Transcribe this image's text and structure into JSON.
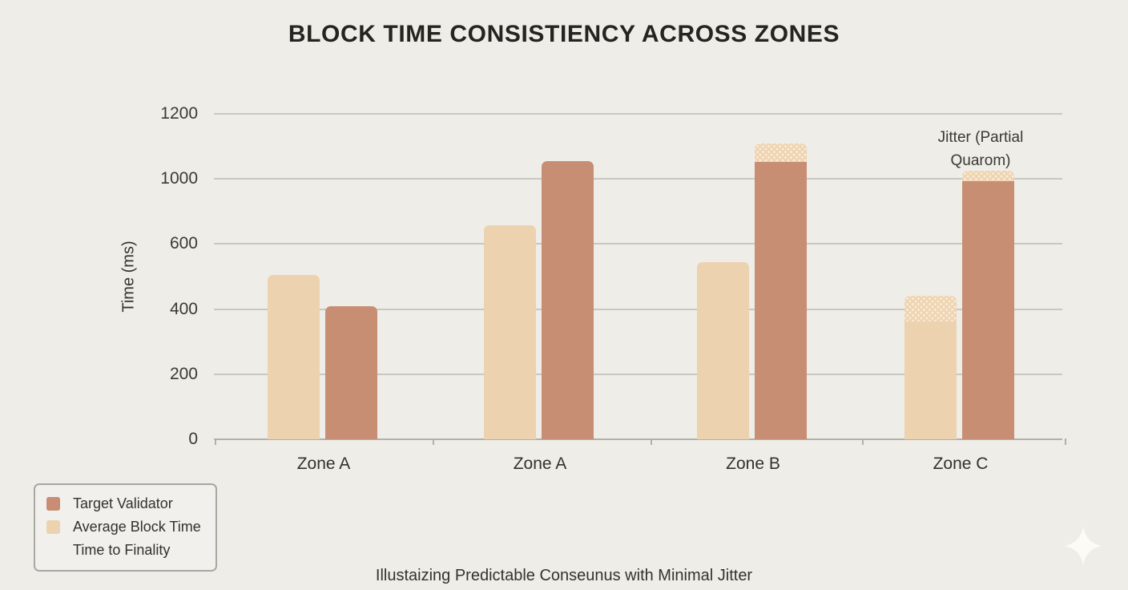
{
  "chart_data": {
    "type": "bar",
    "title": "BLOCK TIME CONSISTIENCY ACROSS ZONES",
    "ylabel": "Time (ms)",
    "xlabel": "",
    "caption": "Illustaizing Predictable Conseunus with Minimal Jitter",
    "annotation": [
      "Jitter (Partial",
      "Quarom)"
    ],
    "categories": [
      "Zone A",
      "Zone A",
      "Zone B",
      "Zone C"
    ],
    "y_ticks": [
      0,
      200,
      400,
      600,
      1000,
      1200
    ],
    "grid": true,
    "legend_position": "bottom-left",
    "series": [
      {
        "name": "Average Block Time",
        "color": "#ecd2ae",
        "values": [
          505,
          715,
          545,
          365
        ],
        "jitter_top": [
          null,
          null,
          null,
          440
        ]
      },
      {
        "name": "Target Validator",
        "color": "#c88e74",
        "values": [
          410,
          1055,
          1055,
          990
        ],
        "jitter_top": [
          null,
          null,
          1110,
          1025
        ]
      }
    ]
  },
  "legend": {
    "items": [
      {
        "label": "Target Validator",
        "color": "#c88e74"
      },
      {
        "label": "Average Block Time",
        "color": "#ecd2ae"
      },
      {
        "label": "Time to Finality",
        "color": null
      }
    ]
  },
  "colors": {
    "background": "#efede8",
    "gridline": "#c9c7c2",
    "axis": "#b2b0ab",
    "jitter_base": "#eed4b2",
    "jitter_dot": "#f9edd9",
    "sparkle": "#fcfbf6"
  }
}
